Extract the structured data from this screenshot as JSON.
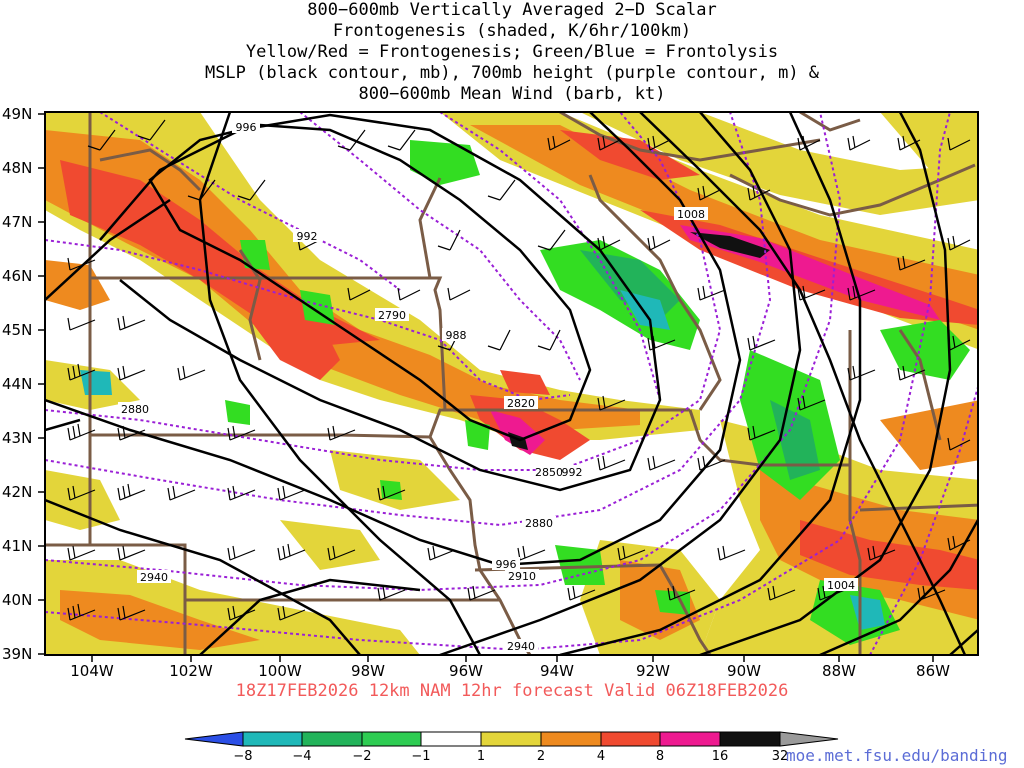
{
  "title_lines": [
    "800−600mb Vertically Averaged 2−D Scalar",
    "Frontogenesis (shaded, K/6hr/100km)",
    "Yellow/Red = Frontogenesis;  Green/Blue = Frontolysis",
    "MSLP (black contour, mb), 700mb height (purple contour, m) &",
    "800−600mb Mean Wind (barb, kt)"
  ],
  "lat_labels": [
    "49N",
    "48N",
    "47N",
    "46N",
    "45N",
    "44N",
    "43N",
    "42N",
    "41N",
    "40N",
    "39N"
  ],
  "lon_labels": [
    "104W",
    "102W",
    "100W",
    "98W",
    "96W",
    "94W",
    "92W",
    "90W",
    "88W",
    "86W"
  ],
  "footer": "18Z17FEB2026 12km NAM 12hr forecast Valid 06Z18FEB2026",
  "credit": "moe.met.fsu.edu/banding",
  "colorbar": {
    "labels": [
      "−8",
      "−4",
      "−2",
      "−1",
      "1",
      "2",
      "4",
      "8",
      "16",
      "32"
    ],
    "colors": [
      "#2b4fe6",
      "#1fb8b8",
      "#22b35a",
      "#2ecc52",
      "#33dd22",
      "#ffffff",
      "#e3d53a",
      "#ee8a1f",
      "#f04a30",
      "#ee1a90",
      "#111111",
      "#9a9a9a"
    ]
  },
  "colors": {
    "frontogenesis_1": "#e3d53a",
    "frontogenesis_2": "#ee8a1f",
    "frontogenesis_4": "#f04a30",
    "frontogenesis_8": "#ee1a90",
    "frontogenesis_16": "#111111",
    "frontolysis_1": "#33dd22",
    "frontolysis_2": "#22b35a",
    "frontolysis_4": "#1fb8b8",
    "mslp": "#000000",
    "height700": "#9a1fd6",
    "borders": "#7a5c46",
    "barbs": "#000000"
  },
  "mslp_labels": [
    "996",
    "992",
    "988",
    "992",
    "996",
    "1004",
    "1008"
  ],
  "height_labels": [
    "2790",
    "2820",
    "2850",
    "2880",
    "2880",
    "2910",
    "2940",
    "2940"
  ]
}
